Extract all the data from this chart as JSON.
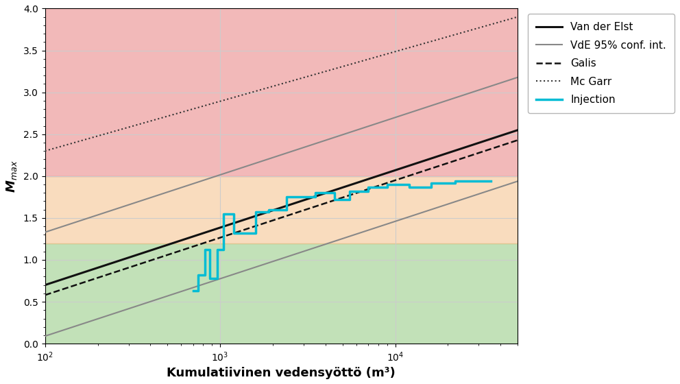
{
  "xlim": [
    100,
    50000
  ],
  "ylim": [
    0.0,
    4.0
  ],
  "xlabel": "Kumulatiivinen vedensyöttö (m³)",
  "background_color": "#ffffff",
  "zone_colors": [
    "#90c97f",
    "#f5c08a",
    "#e88080"
  ],
  "zone_boundaries": [
    0.0,
    1.2,
    2.0,
    4.0
  ],
  "zone_alphas": [
    0.55,
    0.55,
    0.55
  ],
  "van_der_elst": {
    "color": "#111111",
    "lw": 2.2,
    "ls": "solid",
    "slope": 0.685,
    "intercept": -0.67,
    "label": "Van der Elst"
  },
  "vde_conf_upper": {
    "color": "#888888",
    "lw": 1.5,
    "ls": "solid",
    "slope": 0.685,
    "intercept": -0.04,
    "label": "VdE 95% conf. int."
  },
  "vde_conf_lower": {
    "color": "#888888",
    "lw": 1.5,
    "ls": "solid",
    "slope": 0.685,
    "intercept": -1.28
  },
  "galis": {
    "color": "#111111",
    "lw": 1.8,
    "ls": "dashed",
    "slope": 0.685,
    "intercept": -0.79,
    "label": "Galis"
  },
  "mcgarr": {
    "color": "#333333",
    "lw": 1.5,
    "ls": "dotted",
    "slope": 0.593,
    "intercept": 1.114,
    "label": "Mc Garr"
  },
  "injection_x": [
    700,
    750,
    750,
    820,
    820,
    870,
    870,
    960,
    960,
    1050,
    1050,
    1200,
    1200,
    1600,
    1600,
    1900,
    1900,
    2400,
    2400,
    3500,
    3500,
    4500,
    4500,
    5500,
    5500,
    7000,
    7000,
    9000,
    9000,
    12000,
    12000,
    16000,
    16000,
    22000,
    22000,
    35000
  ],
  "injection_y": [
    0.63,
    0.63,
    0.82,
    0.82,
    1.12,
    1.12,
    0.78,
    0.78,
    1.12,
    1.12,
    1.55,
    1.55,
    1.32,
    1.32,
    1.57,
    1.57,
    1.6,
    1.6,
    1.75,
    1.75,
    1.8,
    1.8,
    1.72,
    1.72,
    1.82,
    1.82,
    1.87,
    1.87,
    1.9,
    1.9,
    1.87,
    1.87,
    1.92,
    1.92,
    1.94,
    1.94
  ],
  "injection_color": "#00bcd4",
  "injection_lw": 2.5,
  "grid_color": "#cccccc",
  "yticks": [
    0.0,
    0.5,
    1.0,
    1.5,
    2.0,
    2.5,
    3.0,
    3.5,
    4.0
  ],
  "figsize": [
    9.92,
    5.6
  ],
  "dpi": 100
}
